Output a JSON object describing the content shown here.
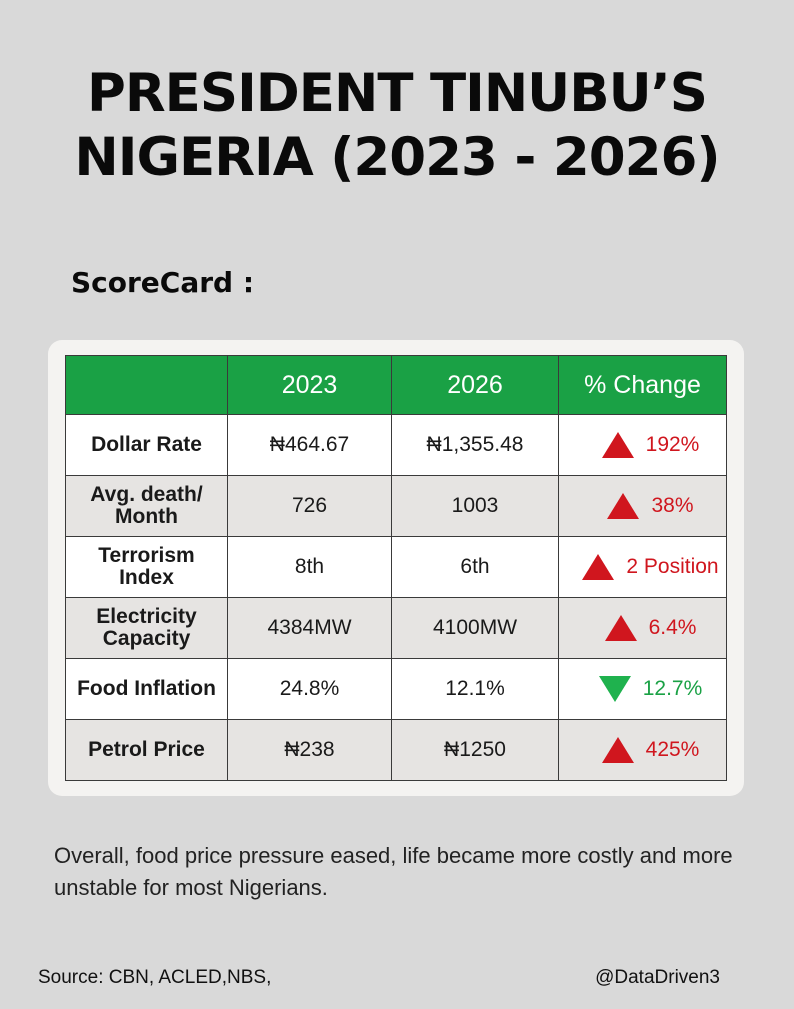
{
  "title": {
    "line1": "PRESIDENT TINUBU’S",
    "line2": "NIGERIA (2023 - 2026)"
  },
  "scorecard_label": "ScoreCard :",
  "table": {
    "headers": [
      "",
      "2023",
      "2026",
      "% Change"
    ],
    "rows": [
      {
        "metric": "Dollar Rate",
        "v2023": "₦464.67",
        "v2026": "₦1,355.48",
        "change": "192%",
        "direction": "up"
      },
      {
        "metric": "Avg. death/ Month",
        "v2023": "726",
        "v2026": "1003",
        "change": "38%",
        "direction": "up"
      },
      {
        "metric": "Terrorism Index",
        "v2023": "8th",
        "v2026": "6th",
        "change": "2 Position",
        "direction": "up"
      },
      {
        "metric": "Electricity Capacity",
        "v2023": "4384MW",
        "v2026": "4100MW",
        "change": "6.4%",
        "direction": "up"
      },
      {
        "metric": "Food Inflation",
        "v2023": "24.8%",
        "v2026": "12.1%",
        "change": "12.7%",
        "direction": "down"
      },
      {
        "metric": "Petrol Price",
        "v2023": "₦238",
        "v2026": "₦1250",
        "change": "425%",
        "direction": "up"
      }
    ]
  },
  "summary": "Overall, food price pressure eased, life became more costly and more unstable for most Nigerians.",
  "footer": {
    "source": "Source: CBN, ACLED,NBS,",
    "handle": "@DataDriven3"
  },
  "colors": {
    "header_green": "#1aa145",
    "up_red": "#d0161e",
    "down_green": "#1fb24e",
    "background": "#d9d9d9"
  },
  "icons": {
    "up": "triangle-up-icon",
    "down": "triangle-down-icon"
  }
}
